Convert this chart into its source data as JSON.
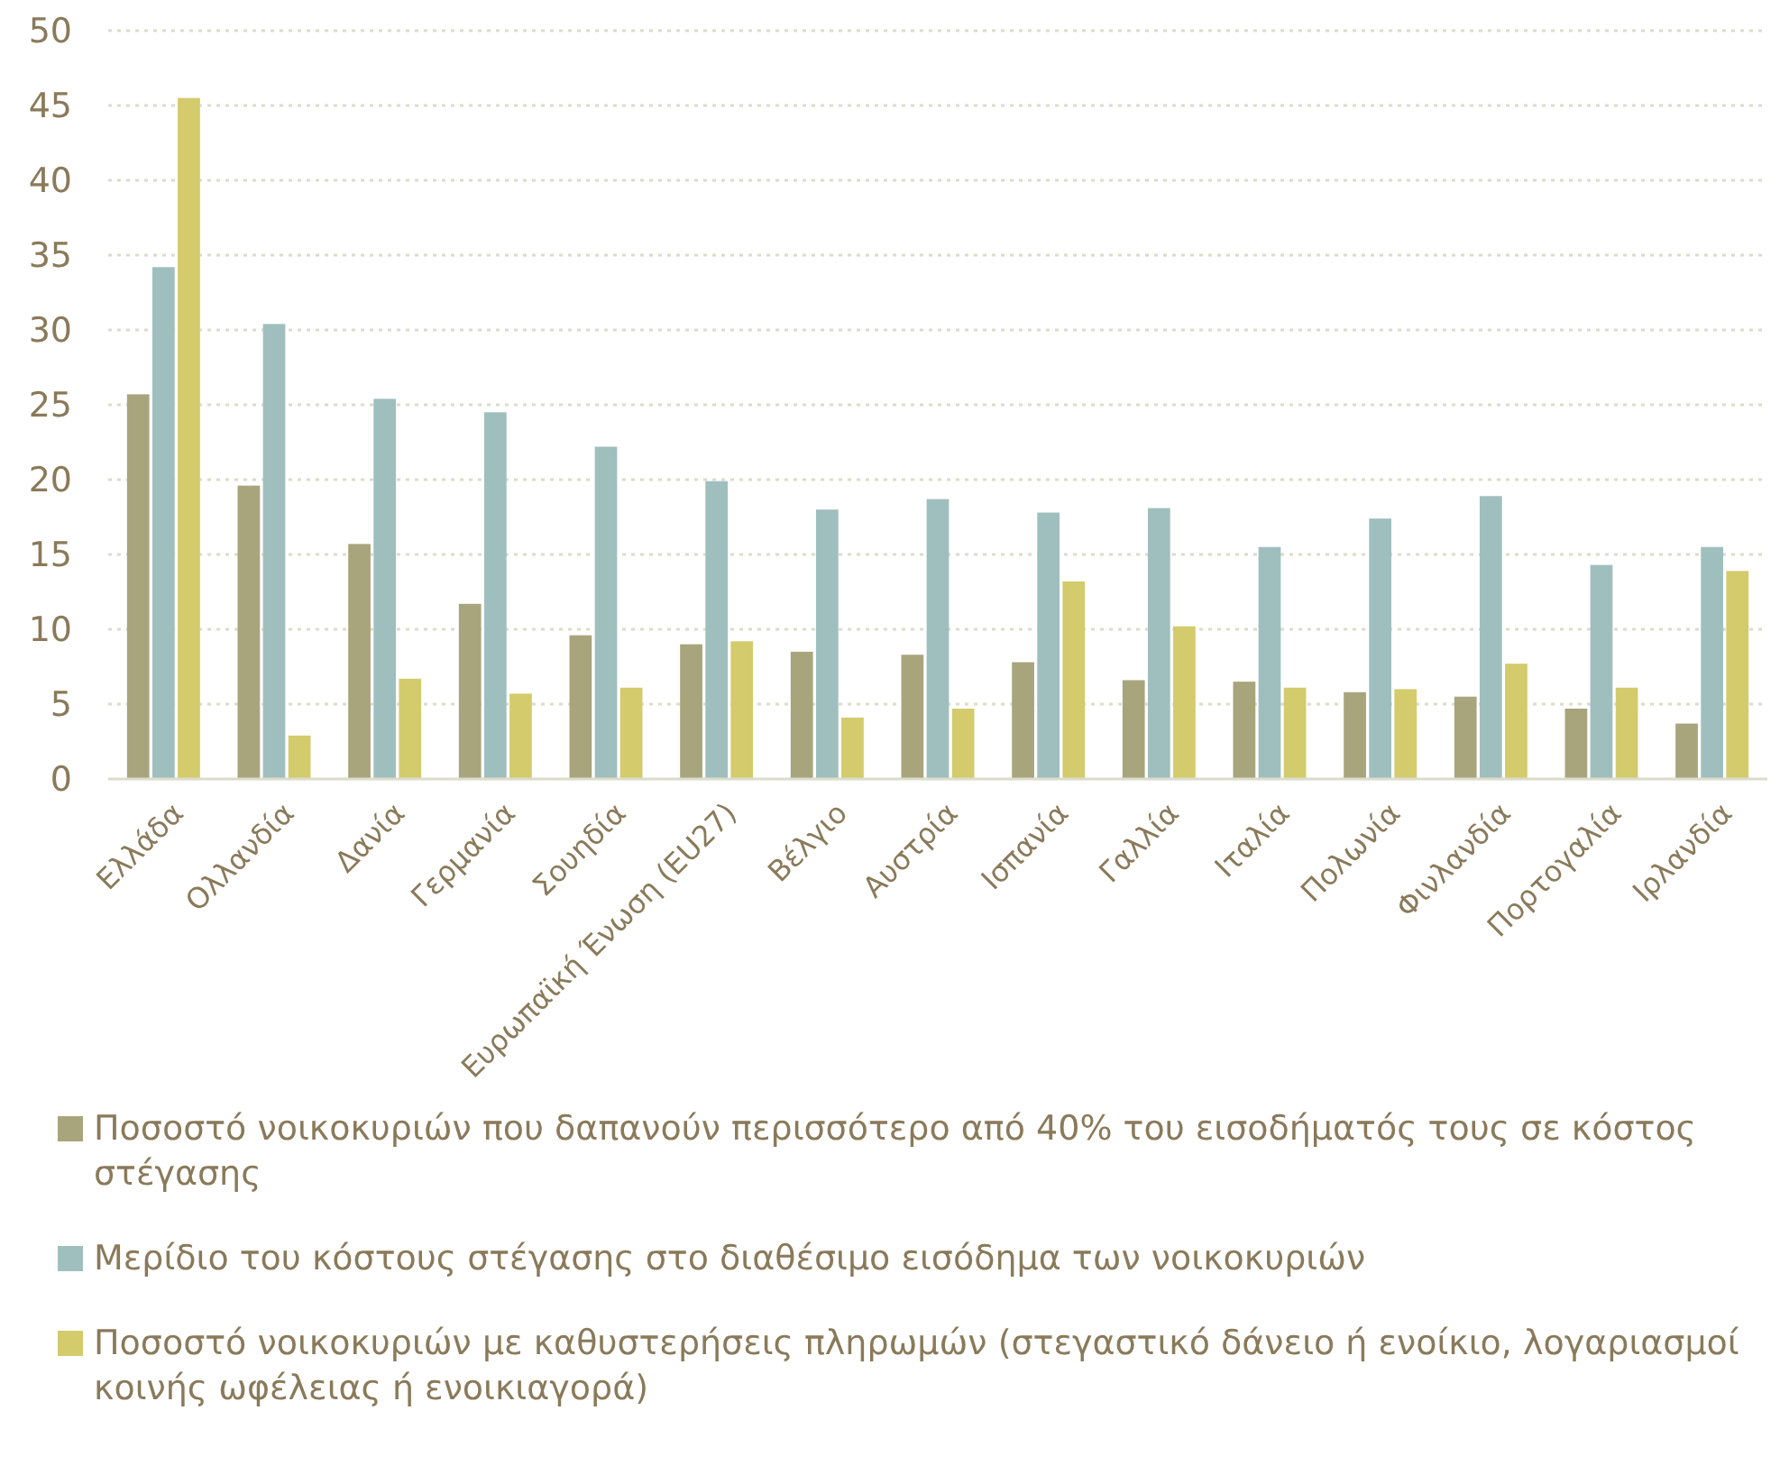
{
  "chart_data": {
    "type": "bar",
    "categories": [
      "Ελλάδα",
      "Ολλανδία",
      "Δανία",
      "Γερμανία",
      "Σουηδία",
      "Ευρωπαϊκή Ένωση (EU27)",
      "Βέλγιο",
      "Αυστρία",
      "Ισπανία",
      "Γαλλία",
      "Ιταλία",
      "Πολωνία",
      "Φινλανδία",
      "Πορτογαλία",
      "Ιρλανδία"
    ],
    "series": [
      {
        "name": "Ποσοστό νοικοκυριών που δαπανούν περισσότερο από 40% του εισοδήματός τους σε κόστος στέγασης",
        "color": "#a8a57c",
        "values": [
          25.7,
          19.6,
          15.7,
          11.7,
          9.6,
          9.0,
          8.5,
          8.3,
          7.8,
          6.6,
          6.5,
          5.8,
          5.5,
          4.7,
          3.7
        ]
      },
      {
        "name": "Μερίδιο του κόστους στέγασης στο διαθέσιμο εισόδημα των νοικοκυριών",
        "color": "#9fbfbe",
        "values": [
          34.2,
          30.4,
          25.4,
          24.5,
          22.2,
          19.9,
          18.0,
          18.7,
          17.8,
          18.1,
          15.5,
          17.4,
          18.9,
          14.3,
          15.5
        ]
      },
      {
        "name": "Ποσοστό νοικοκυριών με καθυστερήσεις πληρωμών (στεγαστικό δάνειο ή ενοίκιο, λογαριασμοί κοινής ωφέλειας ή ενοικιαγορά)",
        "color": "#d3cb6c",
        "values": [
          45.5,
          2.9,
          6.7,
          5.7,
          6.1,
          9.2,
          4.1,
          4.7,
          13.2,
          10.2,
          6.1,
          6.0,
          7.7,
          6.1,
          13.9
        ]
      }
    ],
    "ylim": [
      0,
      50
    ],
    "yticks": [
      0,
      5,
      10,
      15,
      20,
      25,
      30,
      35,
      40,
      45,
      50
    ],
    "grid": "y",
    "legend": "bottom"
  }
}
